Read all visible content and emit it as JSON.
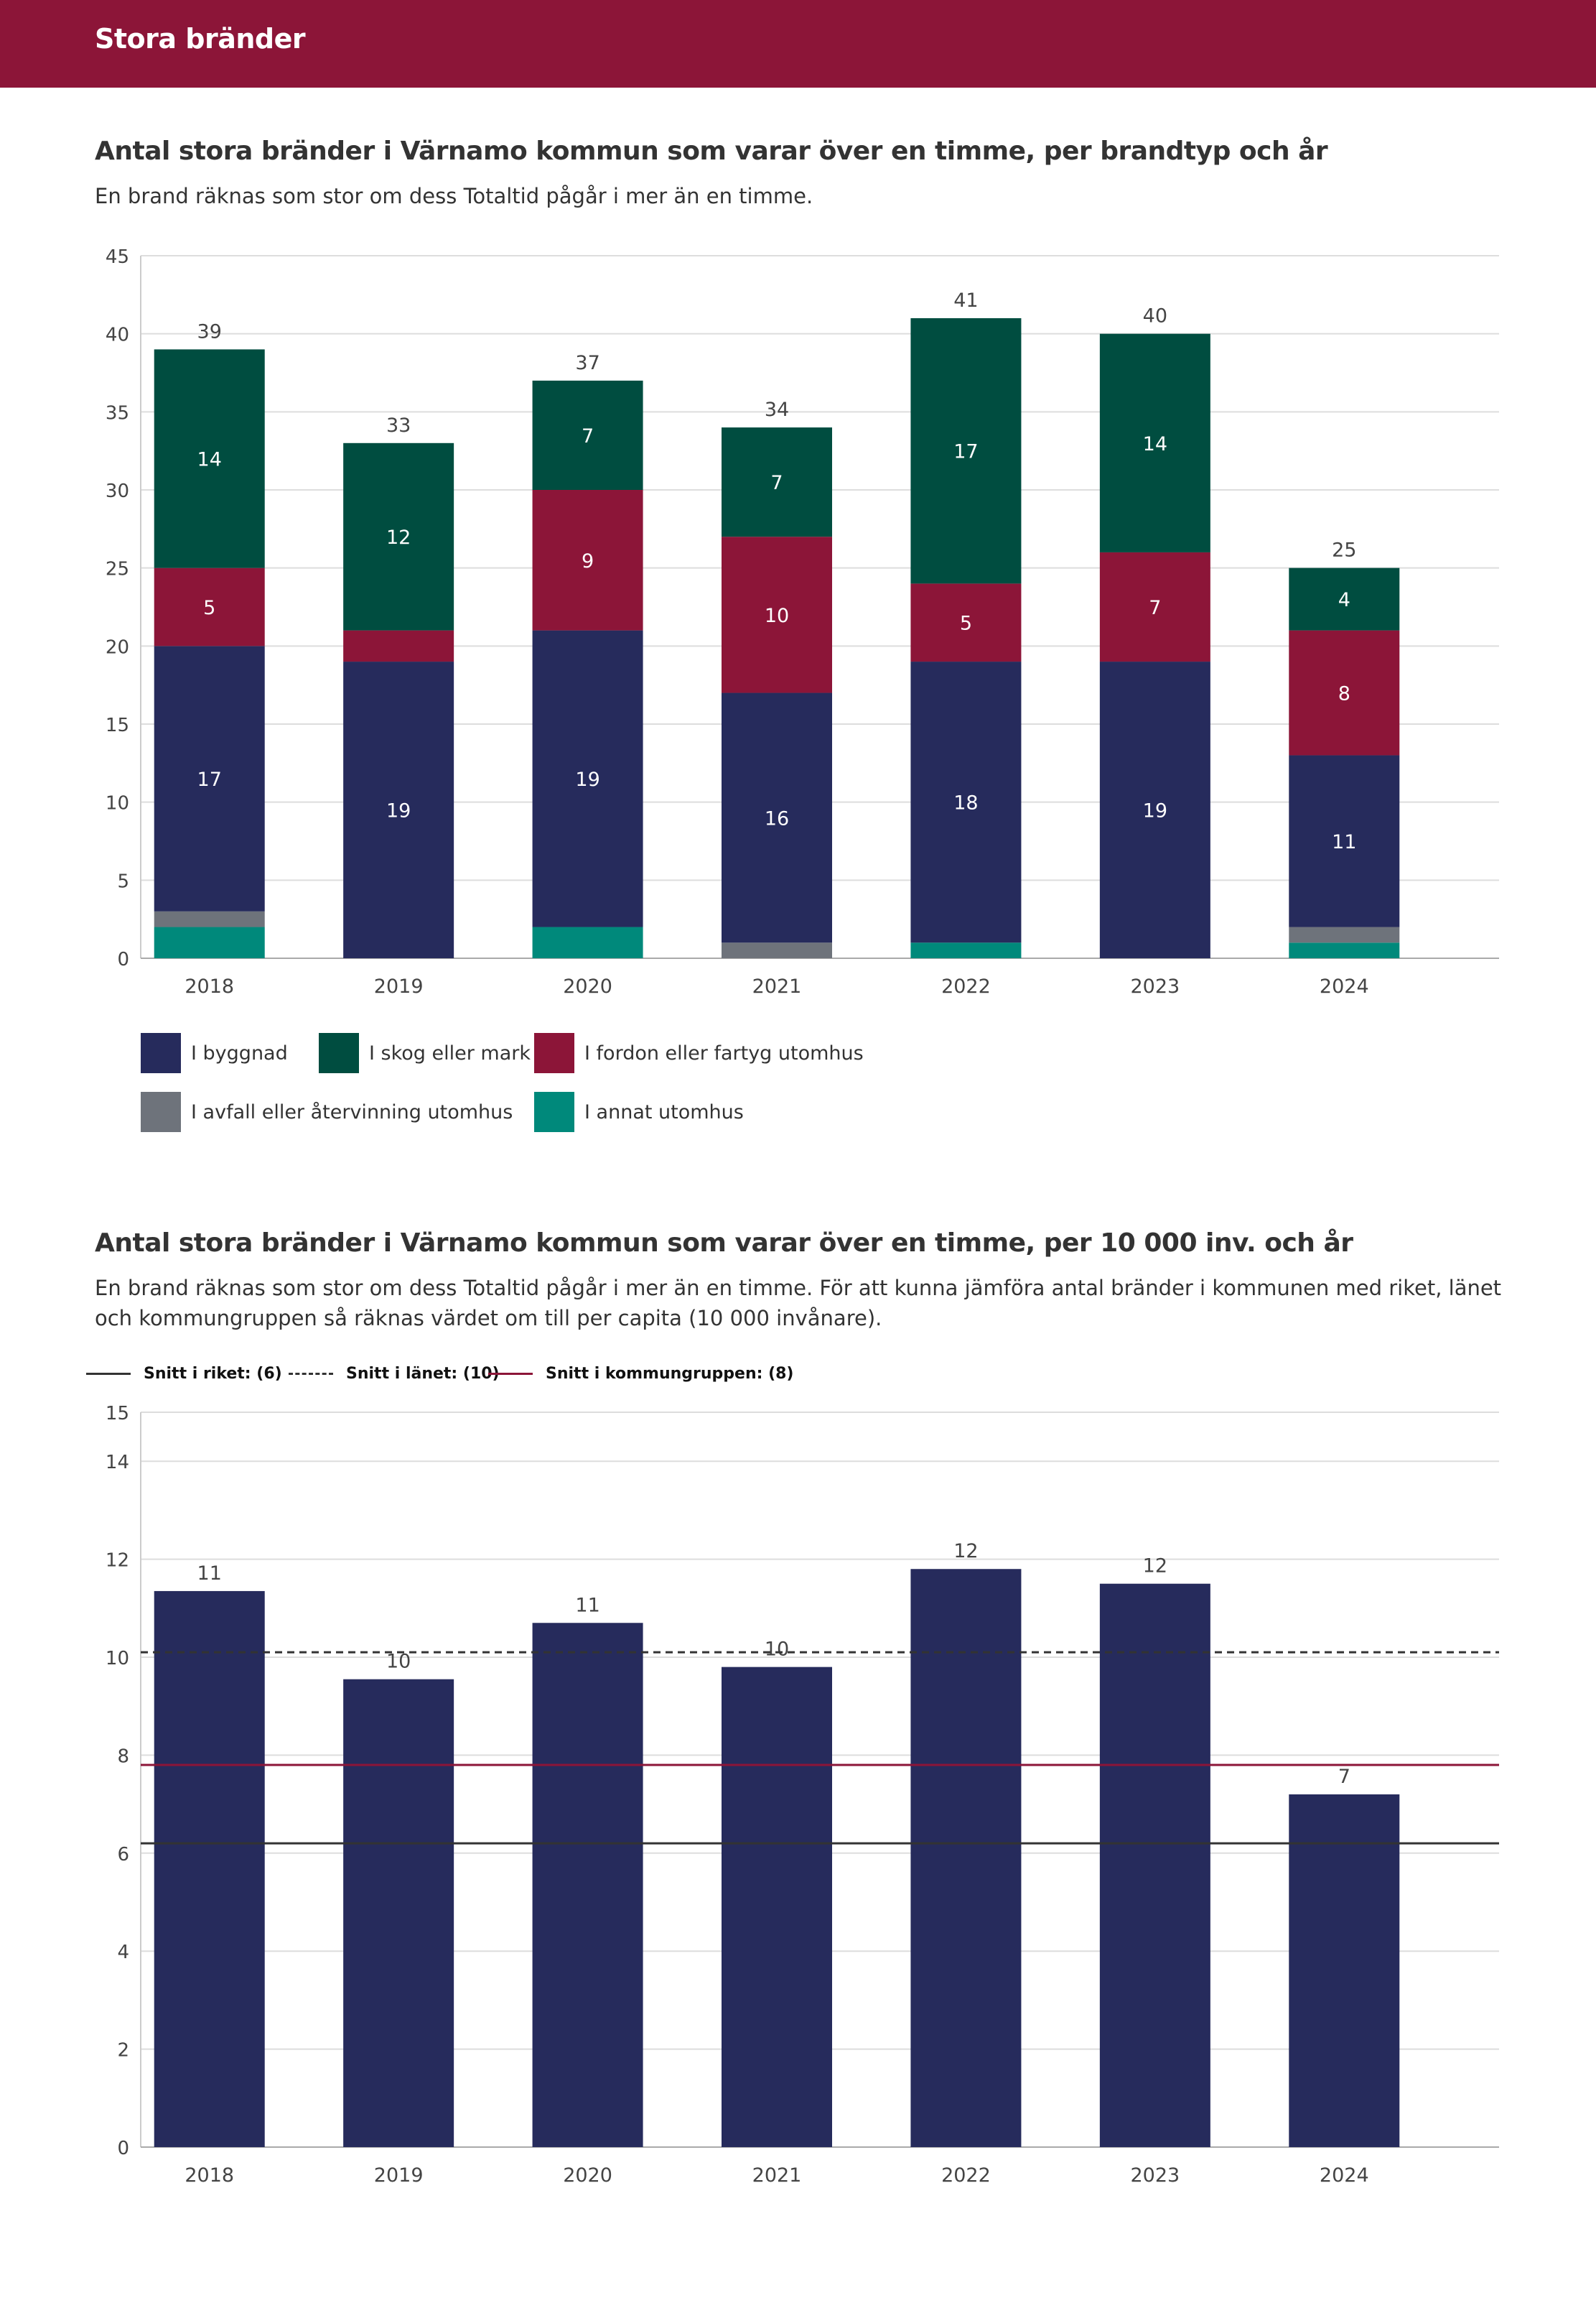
{
  "header": {
    "title": "Stora bränder"
  },
  "section1": {
    "title": "Antal stora bränder i Värnamo kommun som varar över en timme, per brandtyp och år",
    "subtitle": "En brand räknas som stor om dess Totaltid pågår i mer än en timme."
  },
  "section2": {
    "title": "Antal stora bränder i Värnamo kommun som varar över en timme, per 10 000 inv. och år",
    "subtitle": "En brand räknas som stor om dess Totaltid pågår i mer än en timme. För att kunna jämföra antal bränder i kommunen med riket, länet och kommungruppen så räknas värdet om till per capita (10 000 invånare)."
  },
  "colors": {
    "header": "#8c1538",
    "byggnad": "#262b5c",
    "skog": "#004d40",
    "fordon": "#8c1538",
    "avfall": "#6e737b",
    "annat": "#00897b",
    "riket_line": "#333333",
    "lanet_line": "#333333",
    "kommungrupp_line": "#8c1538"
  },
  "chart_data": [
    {
      "type": "bar",
      "stacked": true,
      "categories": [
        "2018",
        "2019",
        "2020",
        "2021",
        "2022",
        "2023",
        "2024"
      ],
      "ylim": [
        0,
        45
      ],
      "yticks": [
        0,
        5,
        10,
        15,
        20,
        25,
        30,
        35,
        40,
        45
      ],
      "grid": true,
      "legend_position": "bottom",
      "series": [
        {
          "name": "I annat utomhus",
          "color_key": "annat",
          "values": [
            2,
            0,
            2,
            0,
            1,
            0,
            1
          ]
        },
        {
          "name": "I avfall eller återvinning utomhus",
          "color_key": "avfall",
          "values": [
            1,
            0,
            0,
            1,
            0,
            0,
            1
          ]
        },
        {
          "name": "I byggnad",
          "color_key": "byggnad",
          "values": [
            17,
            19,
            19,
            16,
            18,
            19,
            11
          ]
        },
        {
          "name": "I fordon eller fartyg utomhus",
          "color_key": "fordon",
          "values": [
            5,
            2,
            9,
            10,
            5,
            7,
            8
          ]
        },
        {
          "name": "I skog eller mark",
          "color_key": "skog",
          "values": [
            14,
            12,
            7,
            7,
            17,
            14,
            4
          ]
        }
      ],
      "value_labels": [
        [
          "",
          "",
          "17",
          "5",
          "14"
        ],
        [
          "",
          "",
          "19",
          "",
          "12"
        ],
        [
          "",
          "",
          "19",
          "9",
          "7"
        ],
        [
          "",
          "",
          "16",
          "10",
          "7"
        ],
        [
          "",
          "",
          "18",
          "5",
          "17"
        ],
        [
          "",
          "",
          "19",
          "7",
          "14"
        ],
        [
          "",
          "",
          "11",
          "8",
          "4"
        ]
      ],
      "totals": [
        "39",
        "33",
        "37",
        "34",
        "41",
        "40",
        "25"
      ],
      "legend_order": [
        "I byggnad",
        "I skog eller mark",
        "I fordon eller fartyg utomhus",
        "I avfall eller återvinning utomhus",
        "I annat utomhus"
      ]
    },
    {
      "type": "bar",
      "categories": [
        "2018",
        "2019",
        "2020",
        "2021",
        "2022",
        "2023",
        "2024"
      ],
      "values": [
        11.35,
        9.55,
        10.7,
        9.8,
        11.8,
        11.5,
        7.2
      ],
      "value_labels": [
        "11",
        "10",
        "11",
        "10",
        "12",
        "12",
        "7"
      ],
      "ylim": [
        0,
        15
      ],
      "yticks": [
        0,
        2,
        4,
        6,
        8,
        10,
        12,
        14,
        15
      ],
      "grid": true,
      "reference_lines": [
        {
          "name": "Snitt i riket: (6)",
          "value": 6.2,
          "style": "solid",
          "color_key": "riket_line"
        },
        {
          "name": "Snitt i länet: (10)",
          "value": 10.1,
          "style": "dashed",
          "color_key": "lanet_line"
        },
        {
          "name": "Snitt i kommungruppen: (8)",
          "value": 7.8,
          "style": "solid",
          "color_key": "kommungrupp_line"
        }
      ]
    }
  ]
}
